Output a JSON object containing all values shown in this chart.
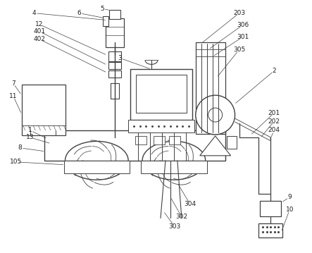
{
  "background_color": "#ffffff",
  "line_color": "#404040",
  "label_color": "#202020",
  "fig_w": 4.43,
  "fig_h": 3.59,
  "dpi": 100
}
